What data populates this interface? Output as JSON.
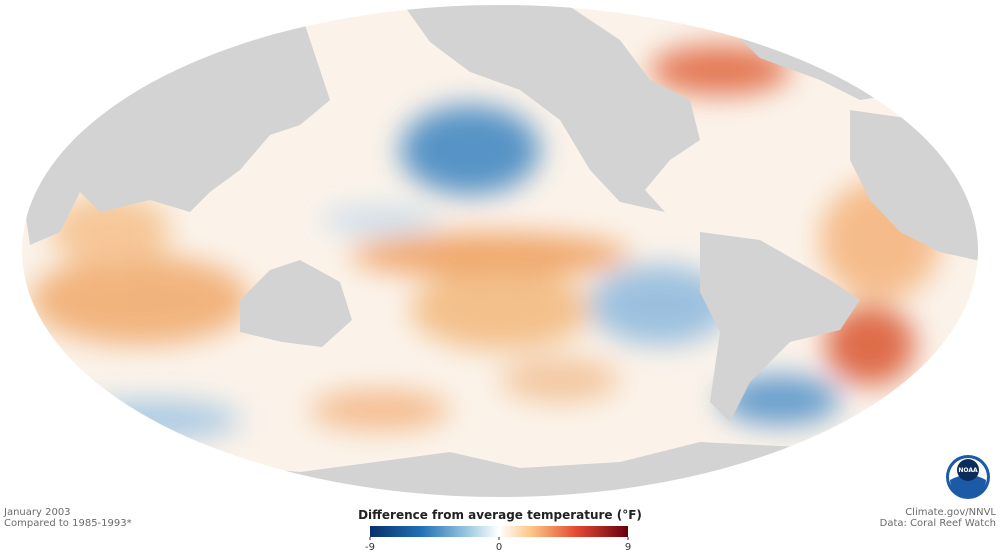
{
  "header": {
    "date": "January 2003",
    "baseline": "Compared to 1985-1993*"
  },
  "credits": {
    "source": "Climate.gov/NNVL",
    "data": "Data: Coral Reef Watch"
  },
  "logo": "NOAA",
  "colorbar": {
    "title": "Difference from average temperature (°F)",
    "lim": [
      -9,
      9
    ],
    "ticks": [
      -9,
      0,
      9
    ]
  }
}
